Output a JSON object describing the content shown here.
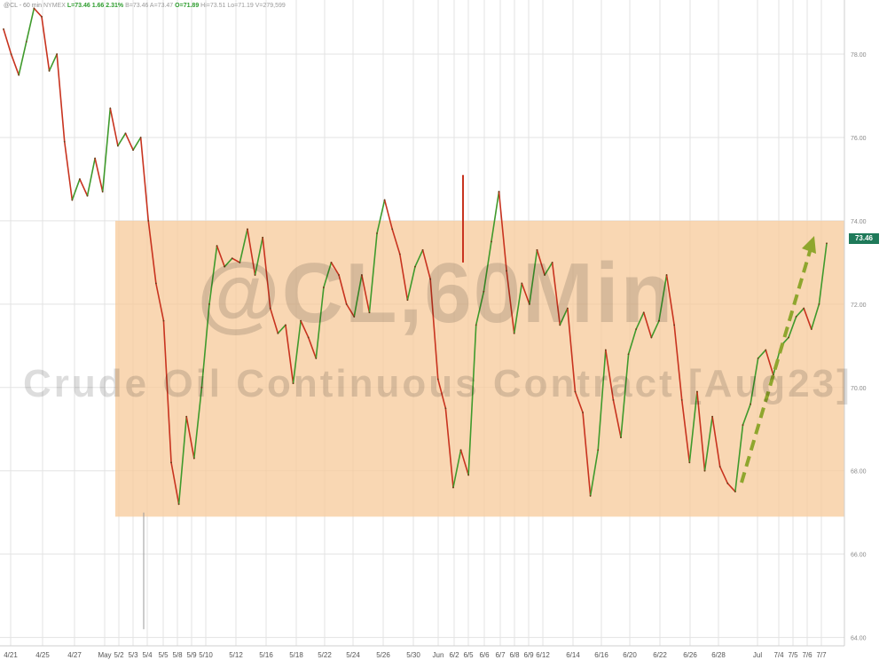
{
  "header": {
    "symbol": "@CL - 60 min",
    "exchange": "NYMEX",
    "last": "L=73.46",
    "change": "1.66",
    "change_pct": "2.31%",
    "bid": "B=73.46",
    "ask": "A=73.47",
    "open": "O=71.89",
    "high": "Hi=73.51",
    "low": "Lo=71.19",
    "volume": "V=279,599"
  },
  "watermark": {
    "line1": "@CL,60Min",
    "line2": "Crude Oil Continuous Contract [Aug23]"
  },
  "last_price_label": "73.46",
  "colors": {
    "up": "#3f9a2c",
    "down": "#c8331f",
    "range_band": "#f7c99a",
    "arrow": "#8fa62e",
    "grid": "#e3e3e3",
    "last_badge": "#1f7a5a"
  },
  "chart_data": {
    "type": "line",
    "title": "",
    "xlabel": "",
    "ylabel": "",
    "ylim": [
      63.8,
      79.3
    ],
    "y_ticks": [
      "64.00",
      "66.00",
      "68.00",
      "70.00",
      "72.00",
      "74.00",
      "76.00",
      "78.00"
    ],
    "x_ticks": [
      "4/21",
      "4/25",
      "4/27",
      "May",
      "5/2",
      "5/3",
      "5/4",
      "5/5",
      "5/8",
      "5/9",
      "5/10",
      "5/12",
      "5/16",
      "5/18",
      "5/22",
      "5/24",
      "5/26",
      "5/30",
      "Jun",
      "6/2",
      "6/5",
      "6/6",
      "6/7",
      "6/8",
      "6/9",
      "6/12",
      "6/14",
      "6/16",
      "6/20",
      "6/22",
      "6/26",
      "6/28",
      "Jul",
      "7/4",
      "7/5",
      "7/6",
      "7/7"
    ],
    "grid": true,
    "range_band": [
      66.9,
      74.0
    ],
    "series": [
      {
        "values": [
          [
            0,
            78.6
          ],
          [
            1,
            78.0
          ],
          [
            2,
            77.5
          ],
          [
            3,
            78.3
          ],
          [
            4,
            79.1
          ],
          [
            5,
            78.9
          ],
          [
            6,
            77.6
          ],
          [
            7,
            78.0
          ],
          [
            8,
            75.9
          ],
          [
            9,
            74.5
          ],
          [
            10,
            75.0
          ],
          [
            11,
            74.6
          ],
          [
            12,
            75.5
          ],
          [
            13,
            74.7
          ],
          [
            14,
            76.7
          ],
          [
            15,
            75.8
          ],
          [
            16,
            76.1
          ],
          [
            17,
            75.7
          ],
          [
            18,
            76.0
          ],
          [
            19,
            74.0
          ],
          [
            20,
            72.5
          ],
          [
            21,
            71.6
          ],
          [
            22,
            68.2
          ],
          [
            23,
            67.2
          ],
          [
            24,
            69.3
          ],
          [
            25,
            68.3
          ],
          [
            26,
            70.0
          ],
          [
            27,
            72.0
          ],
          [
            28,
            73.4
          ],
          [
            29,
            72.9
          ],
          [
            30,
            73.1
          ],
          [
            31,
            73.0
          ],
          [
            32,
            73.8
          ],
          [
            33,
            72.7
          ],
          [
            34,
            73.6
          ],
          [
            35,
            71.9
          ],
          [
            36,
            71.3
          ],
          [
            37,
            71.5
          ],
          [
            38,
            70.1
          ],
          [
            39,
            71.6
          ],
          [
            40,
            71.2
          ],
          [
            41,
            70.7
          ],
          [
            42,
            72.4
          ],
          [
            43,
            73.0
          ],
          [
            44,
            72.7
          ],
          [
            45,
            72.0
          ],
          [
            46,
            71.7
          ],
          [
            47,
            72.7
          ],
          [
            48,
            71.8
          ],
          [
            49,
            73.7
          ],
          [
            50,
            74.5
          ],
          [
            51,
            73.8
          ],
          [
            52,
            73.2
          ],
          [
            53,
            72.1
          ],
          [
            54,
            72.9
          ],
          [
            55,
            73.3
          ],
          [
            56,
            72.6
          ],
          [
            57,
            70.2
          ],
          [
            58,
            69.5
          ],
          [
            59,
            67.6
          ],
          [
            60,
            68.5
          ],
          [
            61,
            67.9
          ],
          [
            62,
            71.5
          ],
          [
            63,
            72.3
          ],
          [
            64,
            73.5
          ],
          [
            65,
            74.7
          ],
          [
            66,
            72.8
          ],
          [
            67,
            71.3
          ],
          [
            68,
            72.5
          ],
          [
            69,
            72.0
          ],
          [
            70,
            73.3
          ],
          [
            71,
            72.7
          ],
          [
            72,
            73.0
          ],
          [
            73,
            71.5
          ],
          [
            74,
            71.9
          ],
          [
            75,
            69.9
          ],
          [
            76,
            69.4
          ],
          [
            77,
            67.4
          ],
          [
            78,
            68.5
          ],
          [
            79,
            70.9
          ],
          [
            80,
            69.7
          ],
          [
            81,
            68.8
          ],
          [
            82,
            70.8
          ],
          [
            83,
            71.4
          ],
          [
            84,
            71.8
          ],
          [
            85,
            71.2
          ],
          [
            86,
            71.6
          ],
          [
            87,
            72.7
          ],
          [
            88,
            71.5
          ],
          [
            89,
            69.7
          ],
          [
            90,
            68.2
          ],
          [
            91,
            69.9
          ],
          [
            92,
            68.0
          ],
          [
            93,
            69.3
          ],
          [
            94,
            68.1
          ],
          [
            95,
            67.7
          ],
          [
            96,
            67.5
          ],
          [
            97,
            69.1
          ],
          [
            98,
            69.6
          ],
          [
            99,
            70.7
          ],
          [
            100,
            70.9
          ],
          [
            101,
            70.3
          ],
          [
            102,
            71.0
          ],
          [
            103,
            71.2
          ],
          [
            104,
            71.7
          ],
          [
            105,
            71.9
          ],
          [
            106,
            71.4
          ],
          [
            107,
            72.0
          ],
          [
            108,
            73.46
          ]
        ]
      }
    ]
  }
}
